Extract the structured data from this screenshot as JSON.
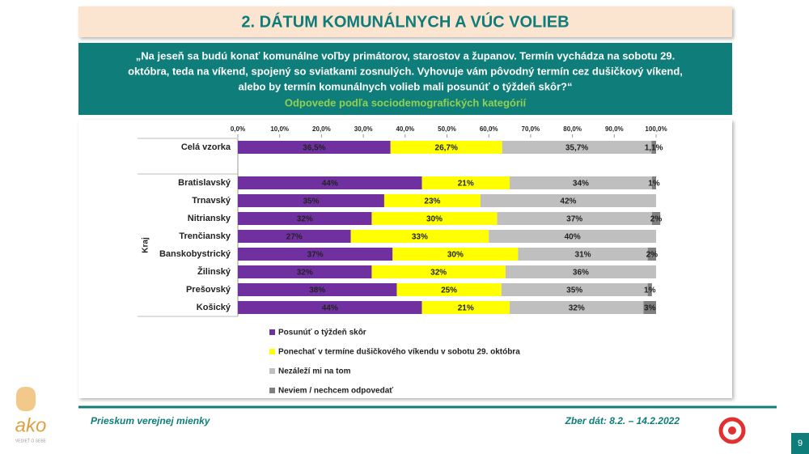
{
  "title": "2. DÁTUM KOMUNÁLNYCH A VÚC VOLIEB",
  "question": {
    "lines": [
      "„Na jeseň sa budú konať komunálne voľby primátorov, starostov a županov. Termín vychádza na sobotu 29.",
      "októbra, teda na víkend, spojený so sviatkami zosnulých. Vyhovuje vám pôvodný termín cez dušičkový víkend,",
      "alebo by termín komunálnych volieb mali posunúť o týždeň skôr?“"
    ],
    "subtitle": "Odpovede podľa sociodemografických kategórií"
  },
  "chart_data": {
    "type": "bar",
    "orientation": "horizontal",
    "stacked": true,
    "categories": [
      "Celá vzorka",
      "Bratislavský",
      "Trnavský",
      "Nitriansky",
      "Trenčiansky",
      "Banskobystrický",
      "Žilinský",
      "Prešovský",
      "Košický"
    ],
    "group_label": "Kraj",
    "xlim": [
      0,
      100
    ],
    "xticks": [
      {
        "value": 0,
        "label": "0,0%"
      },
      {
        "value": 10,
        "label": "10,0%"
      },
      {
        "value": 20,
        "label": "20,0%"
      },
      {
        "value": 30,
        "label": "30,0%"
      },
      {
        "value": 40,
        "label": "40,0%"
      },
      {
        "value": 50,
        "label": "50,0%"
      },
      {
        "value": 60,
        "label": "60,0%"
      },
      {
        "value": 70,
        "label": "70,0%"
      },
      {
        "value": 80,
        "label": "80,0%"
      },
      {
        "value": 90,
        "label": "90,0%"
      },
      {
        "value": 100,
        "label": "100,0%"
      }
    ],
    "series": [
      {
        "name": "Posunúť o týždeň skôr",
        "color": "#7030a0",
        "values": [
          36.5,
          44,
          35,
          32,
          27,
          37,
          32,
          38,
          44
        ],
        "value_labels": [
          "36,5%",
          "44%",
          "35%",
          "32%",
          "27%",
          "37%",
          "32%",
          "38%",
          "44%"
        ]
      },
      {
        "name": "Ponechať v termíne dušičkového víkendu v sobotu 29. októbra",
        "color": "#ffff00",
        "values": [
          26.7,
          21,
          23,
          30,
          33,
          30,
          32,
          25,
          21
        ],
        "value_labels": [
          "26,7%",
          "21%",
          "23%",
          "30%",
          "33%",
          "30%",
          "32%",
          "25%",
          "21%"
        ]
      },
      {
        "name": "Nezáleží mi na tom",
        "color": "#bfbfbf",
        "values": [
          35.7,
          34,
          42,
          37,
          40,
          31,
          36,
          35,
          32
        ],
        "value_labels": [
          "35,7%",
          "34%",
          "42%",
          "37%",
          "40%",
          "31%",
          "36%",
          "35%",
          "32%"
        ]
      },
      {
        "name": "Neviem / nechcem odpovedať",
        "color": "#7f7f7f",
        "values": [
          1.1,
          1,
          null,
          2,
          null,
          2,
          null,
          1,
          3
        ],
        "value_labels": [
          "1,1%",
          "1%",
          null,
          "2%",
          null,
          "2%",
          null,
          "1%",
          "3%"
        ]
      }
    ]
  },
  "footer": {
    "left": "Prieskum verejnej mienky",
    "right": "Zber dát: 8.2. – 14.2.2022",
    "page": "9"
  },
  "logo": {
    "text": "ako",
    "tagline": "VEDIEŤ O SEBE"
  }
}
